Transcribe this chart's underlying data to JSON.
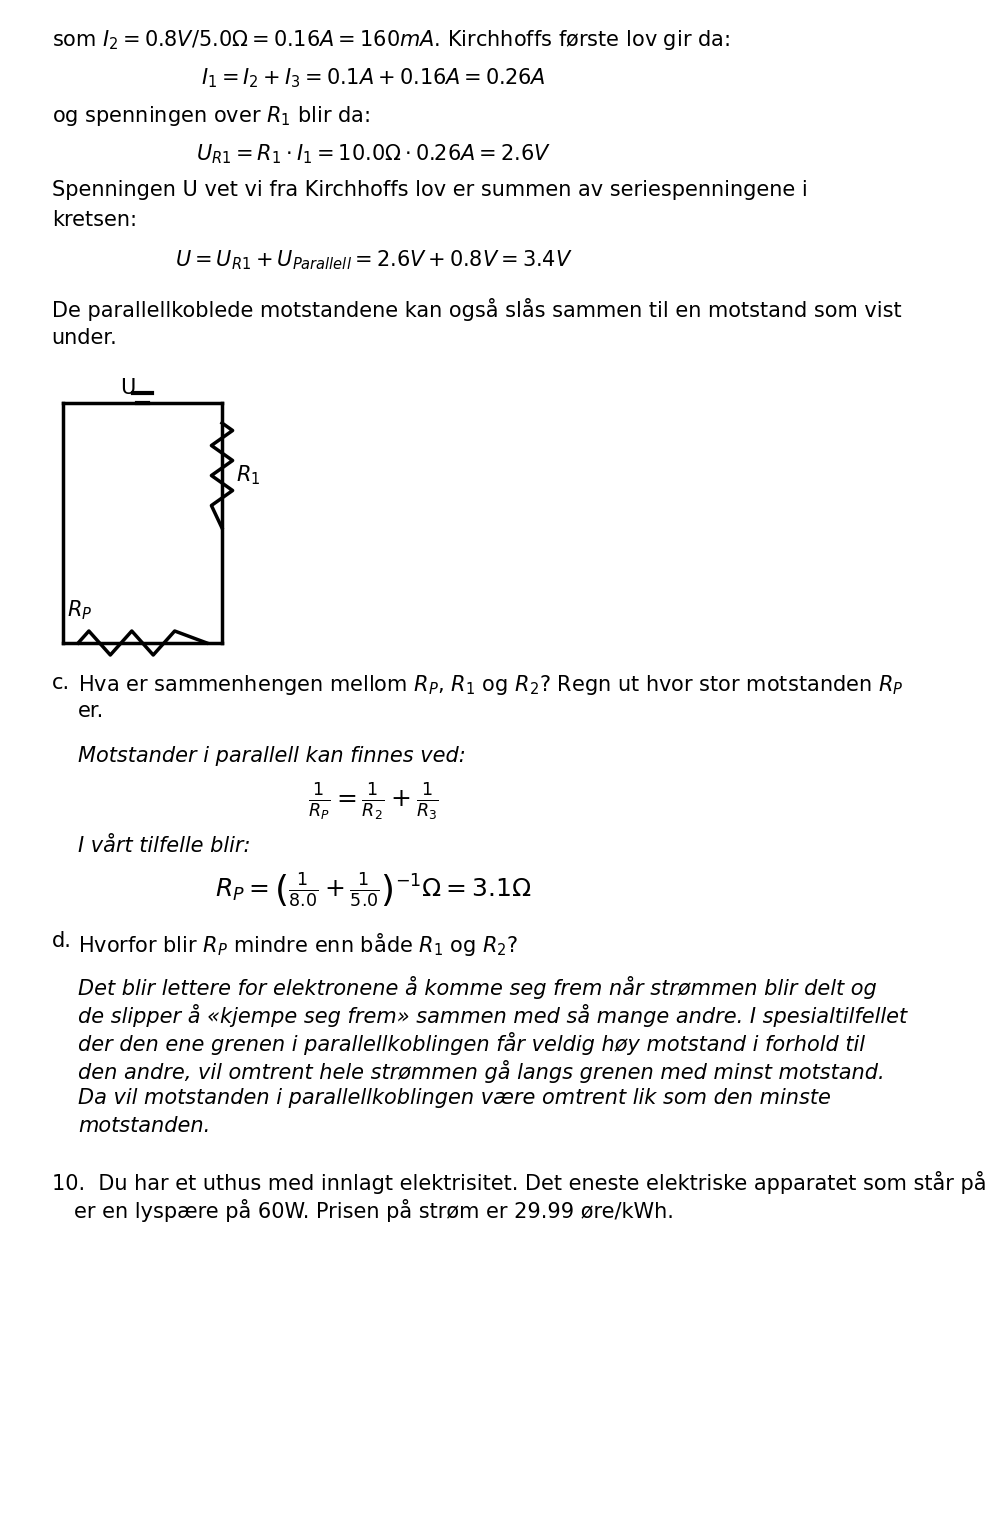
{
  "bg_color": "#ffffff",
  "text_color": "#000000",
  "line1": "som $I_2 = 0.8V/5.0\\Omega = 0.16A = 160mA$. Kirchhoffs første lov gir da:",
  "eq1": "$I_1 = I_2 + I_3 = 0.1A + 0.16A = 0.26A$",
  "line2": "og spenningen over $R_1$ blir da:",
  "eq2": "$U_{R1} = R_1 \\cdot I_1 = 10.0\\Omega \\cdot 0.26A = 2.6V$",
  "line3": "Spenningen U vet vi fra Kirchhoffs lov er summen av seriespenningene i",
  "line3b": "kretsen:",
  "eq3": "$U = U_{R1} + U_{Parallell} = 2.6V + 0.8V = 3.4V$",
  "para1": "De parallellkoblede motstandene kan også slås sammen til en motstand som vist",
  "para1b": "under.",
  "label_c": "c.",
  "text_c": "Hva er sammenhengen mellom $R_P$, $R_1$ og $R_2$? Regn ut hvor stor motstanden $R_P$",
  "text_c2": "er.",
  "italic1": "Motstander i parallell kan finnes ved:",
  "eq4": "$\\frac{1}{R_P} = \\frac{1}{R_2} + \\frac{1}{R_3}$",
  "italic2": "I vårt tilfelle blir:",
  "eq5": "$R_P = \\left(\\frac{1}{8.0} + \\frac{1}{5.0}\\right)^{-1} \\Omega = 3.1\\Omega$",
  "label_d": "d.",
  "text_d": "Hvorfor blir $R_P$ mindre enn både $R_1$ og $R_2$?",
  "italic3": "Det blir lettere for elektronene å komme seg frem når strømmen blir delt og",
  "italic4": "de slipper å «kjempe seg frem» sammen med så mange andre. I spesialtilfellet",
  "italic5": "der den ene grenen i parallellkoblingen får veldig høy motstand i forhold til",
  "italic6": "den andre, vil omtrent hele strømmen gå langs grenen med minst motstand.",
  "italic7": "Da vil motstanden i parallellkoblingen være omtrent lik som den minste",
  "italic8": "motstanden.",
  "line_10": "10.  Du har et uthus med innlagt elektrisitet. Det eneste elektriske apparatet som står på",
  "line_10b": "er en lyspære på 60W. Prisen på strøm er 29.99 øre/kWh."
}
